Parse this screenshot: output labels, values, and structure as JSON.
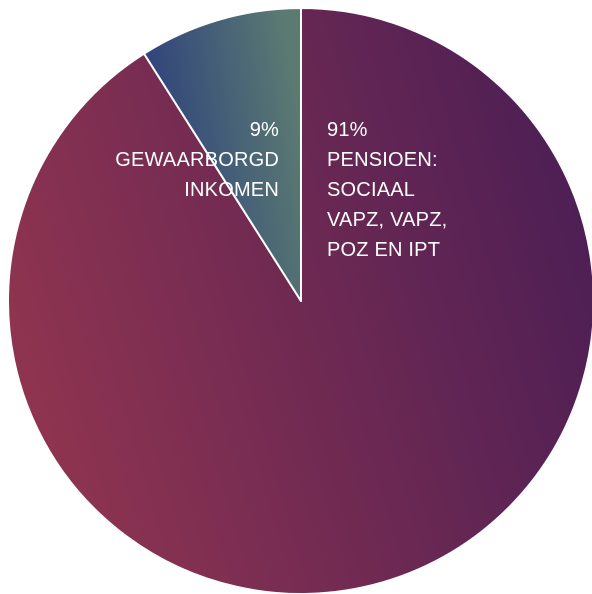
{
  "chart_data": {
    "type": "pie",
    "slices": [
      {
        "value": 91,
        "percent_label": "91%",
        "label_lines": [
          "PENSIOEN:",
          "SOCIAAL",
          "VAPZ, VAPZ,",
          "POZ EN IPT"
        ],
        "color_start": "#8f3450",
        "color_end": "#4e1f55"
      },
      {
        "value": 9,
        "percent_label": "9%",
        "label_lines": [
          "GEWAARBORGD",
          "INKOMEN"
        ],
        "color_start": "#5a7a72",
        "color_end": "#2b3d7d"
      }
    ],
    "start_angle_deg": 0,
    "direction": "clockwise",
    "separator_color": "#ffffff",
    "background": "#ffffff"
  }
}
